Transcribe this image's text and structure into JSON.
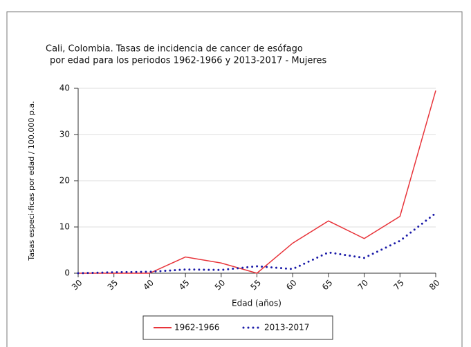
{
  "chart_data": {
    "type": "line",
    "title": [
      "Cali, Colombia. Tasas de incidencia de cancer de esófago",
      "por edad para los periodos 1962-1966 y 2013-2017 - Mujeres"
    ],
    "xlabel": "Edad (años)",
    "ylabel": "Tasas especi-ficas por edad / 100.000 p.a.",
    "x": [
      30,
      35,
      40,
      45,
      50,
      55,
      60,
      65,
      70,
      75,
      80
    ],
    "series": [
      {
        "name": "1962-1966",
        "color": "#e8343a",
        "style": "solid",
        "values": [
          0,
          0,
          0,
          3.5,
          2.2,
          0,
          6.5,
          11.3,
          7.5,
          12.3,
          39.5
        ]
      },
      {
        "name": "2013-2017",
        "color": "#1a1aa8",
        "style": "dotted",
        "values": [
          0,
          0.2,
          0.3,
          0.8,
          0.7,
          1.5,
          0.9,
          4.5,
          3.3,
          7,
          13
        ]
      }
    ],
    "xlim": [
      30,
      80
    ],
    "xticks": [
      30,
      35,
      40,
      45,
      50,
      55,
      60,
      65,
      70,
      75,
      80
    ],
    "ylim": [
      0,
      40
    ],
    "yticks": [
      0,
      10,
      20,
      30,
      40
    ],
    "grid": true,
    "legend": "bottom"
  }
}
